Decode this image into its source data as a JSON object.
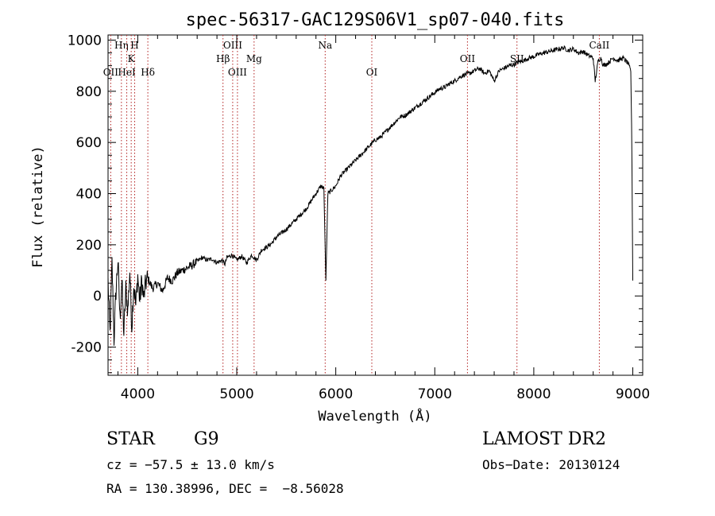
{
  "chart_data": {
    "type": "line",
    "title": "spec-56317-GAC129S06V1_sp07-040.fits",
    "xlabel": "Wavelength (Å)",
    "ylabel": "Flux (relative)",
    "xlim": [
      3700,
      9100
    ],
    "ylim": [
      -310,
      1020
    ],
    "x_ticks": [
      4000,
      5000,
      6000,
      7000,
      8000,
      9000
    ],
    "y_ticks": [
      -200,
      0,
      200,
      400,
      600,
      800,
      1000
    ],
    "grid": false,
    "series": [
      {
        "color": "#000000",
        "points": [
          [
            3700,
            60
          ],
          [
            3720,
            -150
          ],
          [
            3740,
            130
          ],
          [
            3760,
            -170
          ],
          [
            3780,
            20
          ],
          [
            3800,
            140
          ],
          [
            3820,
            -90
          ],
          [
            3840,
            60
          ],
          [
            3860,
            -150
          ],
          [
            3880,
            30
          ],
          [
            3900,
            -60
          ],
          [
            3920,
            100
          ],
          [
            3940,
            -120
          ],
          [
            3960,
            50
          ],
          [
            3980,
            -40
          ],
          [
            4000,
            80
          ],
          [
            4020,
            -20
          ],
          [
            4040,
            60
          ],
          [
            4060,
            -10
          ],
          [
            4080,
            50
          ],
          [
            4100,
            70
          ],
          [
            4150,
            30
          ],
          [
            4200,
            50
          ],
          [
            4250,
            20
          ],
          [
            4300,
            70
          ],
          [
            4350,
            60
          ],
          [
            4400,
            90
          ],
          [
            4450,
            100
          ],
          [
            4500,
            110
          ],
          [
            4550,
            120
          ],
          [
            4600,
            135
          ],
          [
            4650,
            150
          ],
          [
            4700,
            140
          ],
          [
            4750,
            145
          ],
          [
            4800,
            130
          ],
          [
            4850,
            140
          ],
          [
            4880,
            125
          ],
          [
            4900,
            150
          ],
          [
            4950,
            160
          ],
          [
            5000,
            140
          ],
          [
            5050,
            155
          ],
          [
            5100,
            130
          ],
          [
            5150,
            160
          ],
          [
            5200,
            140
          ],
          [
            5250,
            180
          ],
          [
            5300,
            190
          ],
          [
            5350,
            205
          ],
          [
            5400,
            230
          ],
          [
            5450,
            245
          ],
          [
            5500,
            260
          ],
          [
            5550,
            280
          ],
          [
            5600,
            300
          ],
          [
            5650,
            320
          ],
          [
            5700,
            340
          ],
          [
            5750,
            370
          ],
          [
            5800,
            400
          ],
          [
            5850,
            430
          ],
          [
            5880,
            420
          ],
          [
            5900,
            60
          ],
          [
            5920,
            400
          ],
          [
            5950,
            410
          ],
          [
            6000,
            430
          ],
          [
            6050,
            470
          ],
          [
            6100,
            490
          ],
          [
            6150,
            510
          ],
          [
            6200,
            530
          ],
          [
            6250,
            550
          ],
          [
            6300,
            570
          ],
          [
            6350,
            590
          ],
          [
            6400,
            610
          ],
          [
            6450,
            620
          ],
          [
            6500,
            640
          ],
          [
            6550,
            660
          ],
          [
            6600,
            680
          ],
          [
            6650,
            700
          ],
          [
            6700,
            705
          ],
          [
            6750,
            720
          ],
          [
            6800,
            735
          ],
          [
            6850,
            750
          ],
          [
            6900,
            765
          ],
          [
            6950,
            780
          ],
          [
            7000,
            795
          ],
          [
            7050,
            810
          ],
          [
            7100,
            815
          ],
          [
            7150,
            830
          ],
          [
            7200,
            840
          ],
          [
            7250,
            855
          ],
          [
            7300,
            865
          ],
          [
            7350,
            870
          ],
          [
            7400,
            880
          ],
          [
            7450,
            890
          ],
          [
            7500,
            870
          ],
          [
            7550,
            880
          ],
          [
            7600,
            840
          ],
          [
            7650,
            880
          ],
          [
            7700,
            890
          ],
          [
            7750,
            900
          ],
          [
            7800,
            905
          ],
          [
            7850,
            915
          ],
          [
            7900,
            920
          ],
          [
            7950,
            930
          ],
          [
            8000,
            935
          ],
          [
            8050,
            945
          ],
          [
            8100,
            950
          ],
          [
            8150,
            955
          ],
          [
            8200,
            960
          ],
          [
            8250,
            965
          ],
          [
            8300,
            970
          ],
          [
            8350,
            960
          ],
          [
            8400,
            965
          ],
          [
            8450,
            950
          ],
          [
            8500,
            955
          ],
          [
            8550,
            940
          ],
          [
            8600,
            930
          ],
          [
            8620,
            840
          ],
          [
            8650,
            920
          ],
          [
            8680,
            930
          ],
          [
            8700,
            900
          ],
          [
            8750,
            910
          ],
          [
            8800,
            930
          ],
          [
            8850,
            920
          ],
          [
            8900,
            930
          ],
          [
            8950,
            910
          ],
          [
            8980,
            880
          ],
          [
            8990,
            620
          ],
          [
            9000,
            60
          ]
        ]
      }
    ],
    "lines": [
      {
        "label": "OII",
        "x": 3727,
        "row": 2
      },
      {
        "label": "Hη",
        "x": 3835,
        "row": 0
      },
      {
        "label": "HeI",
        "x": 3889,
        "row": 2
      },
      {
        "label": "K",
        "x": 3934,
        "row": 1
      },
      {
        "label": "H",
        "x": 3969,
        "row": 0
      },
      {
        "label": "Hδ",
        "x": 4102,
        "row": 2
      },
      {
        "label": "Hβ",
        "x": 4861,
        "row": 1
      },
      {
        "label": "OIII",
        "x": 4959,
        "row": 0
      },
      {
        "label": "OIII",
        "x": 5007,
        "row": 2
      },
      {
        "label": "Mg",
        "x": 5175,
        "row": 1
      },
      {
        "label": "Na",
        "x": 5893,
        "row": 0
      },
      {
        "label": "OI",
        "x": 6364,
        "row": 2
      },
      {
        "label": "OII",
        "x": 7330,
        "row": 1
      },
      {
        "label": "SII",
        "x": 7830,
        "row": 1
      },
      {
        "label": "CaII",
        "x": 8662,
        "row": 0
      }
    ]
  },
  "info": {
    "class": "STAR",
    "subclass": "G9",
    "survey": "LAMOST DR2",
    "cz": "cz = −57.5 ± 13.0 km/s",
    "obs_date": "Obs−Date: 20130124",
    "radec": "RA = 130.38996, DEC =  −8.56028"
  }
}
